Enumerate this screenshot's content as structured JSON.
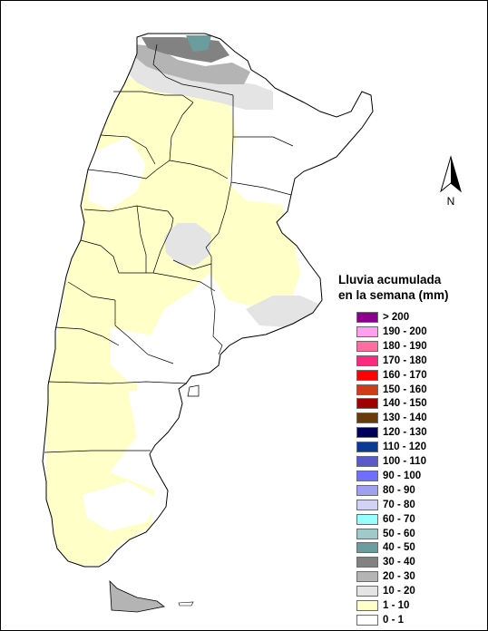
{
  "north_arrow": {
    "label": "N"
  },
  "legend": {
    "title_line1": "Lluvia acumulada",
    "title_line2": "en la semana (mm)",
    "items": [
      {
        "label": "> 200",
        "color": "#8B008B"
      },
      {
        "label": "190 - 200",
        "color": "#FFA0F0"
      },
      {
        "label": "180 - 190",
        "color": "#FF6E9E"
      },
      {
        "label": "170 - 180",
        "color": "#FF2A7F"
      },
      {
        "label": "160 - 170",
        "color": "#FF0000"
      },
      {
        "label": "150 - 160",
        "color": "#D43A1A"
      },
      {
        "label": "140 - 150",
        "color": "#A00000"
      },
      {
        "label": "130 - 140",
        "color": "#6B3A0A"
      },
      {
        "label": "120 - 130",
        "color": "#00005A"
      },
      {
        "label": "110 - 120",
        "color": "#0A3A96"
      },
      {
        "label": "100 - 110",
        "color": "#5A5AC8"
      },
      {
        "label": "90 - 100",
        "color": "#6E6EFF"
      },
      {
        "label": "80 - 90",
        "color": "#A0A0F0"
      },
      {
        "label": "70 - 80",
        "color": "#D2D2F5"
      },
      {
        "label": "60 - 70",
        "color": "#96FFFF"
      },
      {
        "label": "50 - 60",
        "color": "#9ECACA"
      },
      {
        "label": "40 - 50",
        "color": "#6A9E9E"
      },
      {
        "label": "30 - 40",
        "color": "#828282"
      },
      {
        "label": "20 - 30",
        "color": "#B4B4B4"
      },
      {
        "label": "10 - 20",
        "color": "#E4E4E4"
      },
      {
        "label": "1 - 10",
        "color": "#FFFFC8"
      },
      {
        "label": "0 - 1",
        "color": "#FFFFFF"
      }
    ]
  },
  "map_colors": {
    "low": "#FFFFC8",
    "light_gray": "#E4E4E4",
    "mid_gray": "#B4B4B4",
    "dark_gray": "#828282",
    "teal": "#6A9E9E",
    "none": "#FFFFFF"
  }
}
